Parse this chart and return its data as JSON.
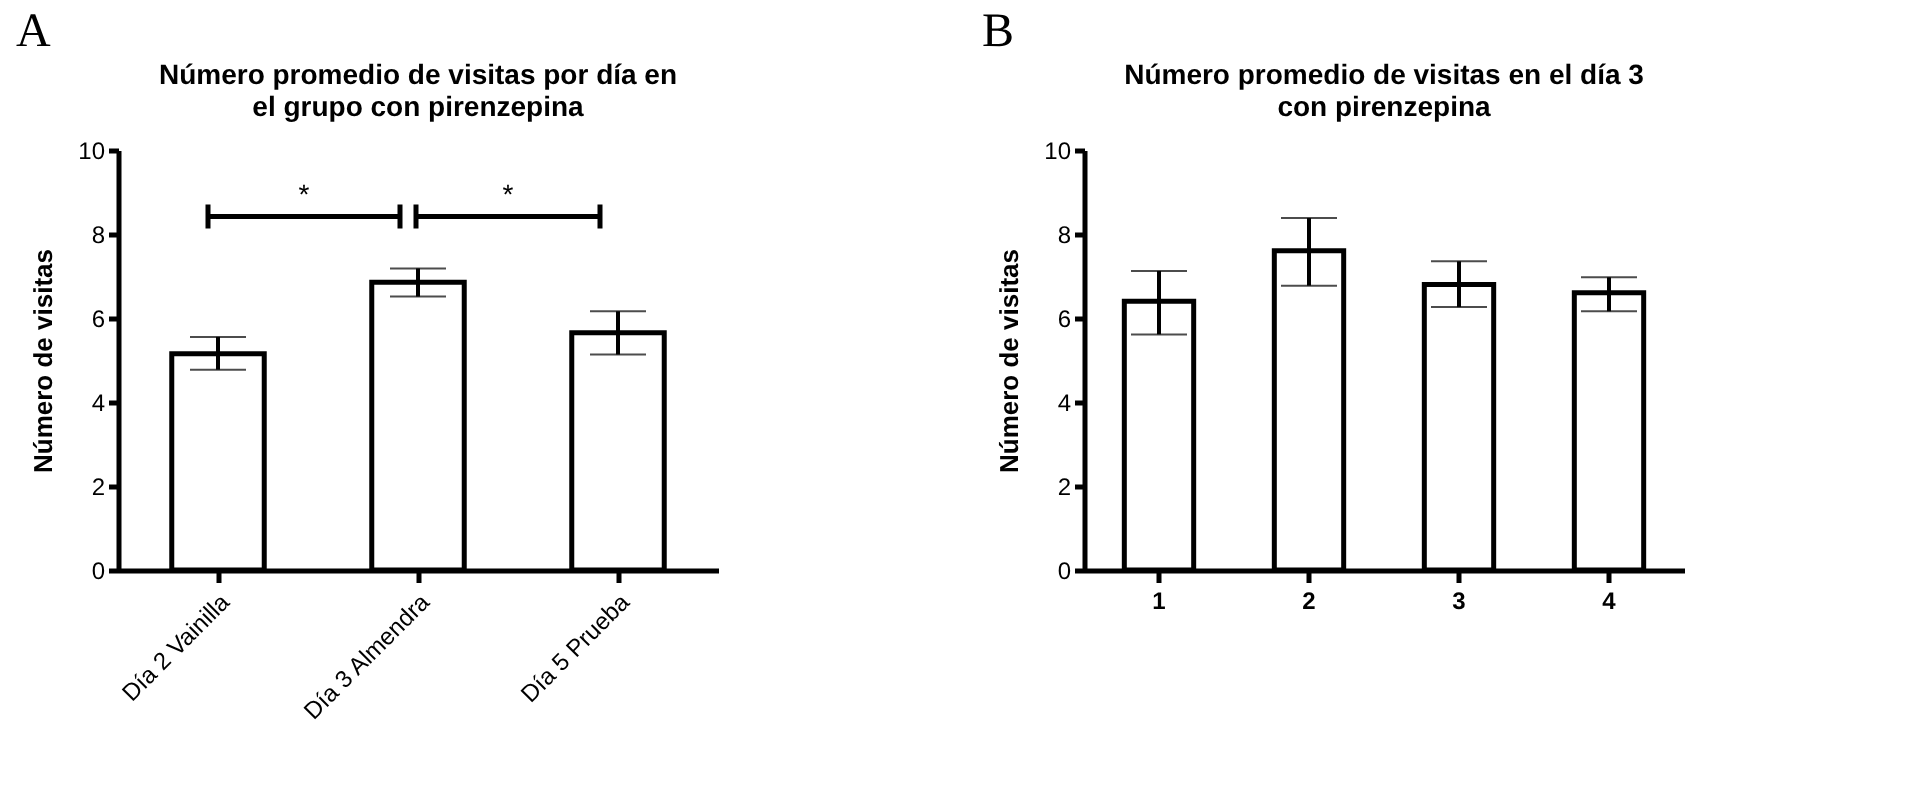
{
  "chart_data": [
    {
      "type": "bar",
      "title": "Número promedio de visitas por día en el grupo con pirenzepina",
      "ylabel": "Número de visitas",
      "categories": [
        "Día 2 Vainilla",
        "Día 3 Almendra",
        "Día 5 Prueba"
      ],
      "values": [
        5.15,
        6.85,
        5.65
      ],
      "errors": [
        [
          4.77,
          5.55
        ],
        [
          6.51,
          7.18
        ],
        [
          5.13,
          6.16
        ]
      ],
      "color": "#ffffff",
      "ylim": [
        0,
        10
      ],
      "yticks": [
        0,
        2,
        4,
        6,
        8,
        10
      ],
      "grid": false,
      "annotations": [
        "A",
        "*",
        "*"
      ]
    },
    {
      "type": "bar",
      "title": "Número promedio de visitas en el día 3 con pirenzepina",
      "ylabel": "Número de visitas",
      "categories": [
        "1",
        "2",
        "3",
        "4"
      ],
      "values": [
        6.4,
        7.6,
        6.8,
        6.6
      ],
      "errors": [
        [
          5.61,
          7.12
        ],
        [
          6.77,
          8.38
        ],
        [
          6.26,
          7.35
        ],
        [
          6.16,
          6.97
        ]
      ],
      "color": "#ffffff",
      "ylim": [
        0,
        10
      ],
      "yticks": [
        0,
        2,
        4,
        6,
        8,
        10
      ],
      "grid": false,
      "annotations": [
        "B"
      ]
    }
  ]
}
